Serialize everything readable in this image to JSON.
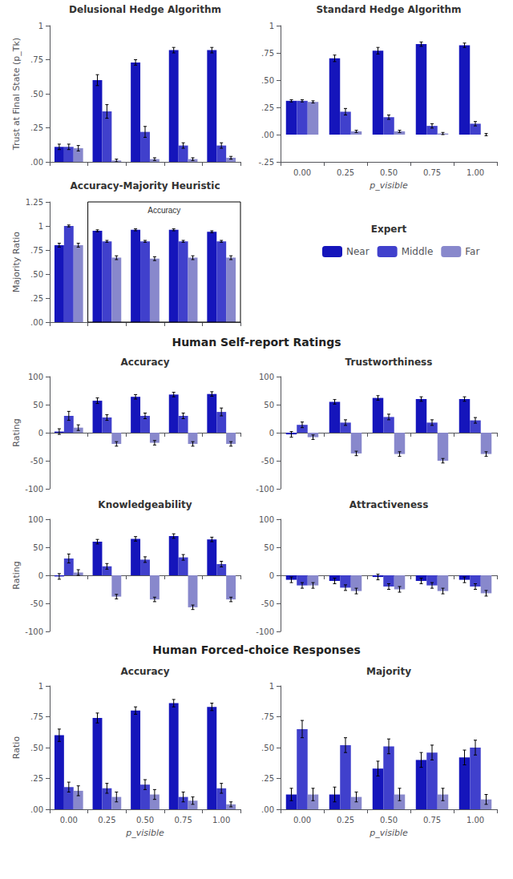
{
  "chart_data": [
    {
      "type": "bar",
      "title": "Delusional Hedge Algorithm",
      "ylabel": "Trust at Final State (p_Tk)",
      "categories": [
        "0.00",
        "0.25",
        "0.50",
        "0.75",
        "1.00"
      ],
      "series": [
        {
          "name": "Near",
          "color": "#1515bb",
          "values": [
            0.11,
            0.6,
            0.73,
            0.82,
            0.82
          ],
          "errors": [
            0.02,
            0.04,
            0.02,
            0.02,
            0.02
          ]
        },
        {
          "name": "Middle",
          "color": "#4040cc",
          "values": [
            0.11,
            0.37,
            0.22,
            0.12,
            0.12
          ],
          "errors": [
            0.02,
            0.05,
            0.04,
            0.02,
            0.02
          ]
        },
        {
          "name": "Far",
          "color": "#8888cc",
          "values": [
            0.1,
            0.01,
            0.02,
            0.02,
            0.03
          ],
          "errors": [
            0.02,
            0.01,
            0.01,
            0.01,
            0.01
          ]
        }
      ],
      "ylim": [
        0,
        1.0
      ],
      "yticks": [
        {
          "value": 0.0,
          "label": ".00"
        },
        {
          "value": 0.25,
          "label": ".25"
        },
        {
          "value": 0.5,
          "label": ".50"
        },
        {
          "value": 0.75,
          "label": ".75"
        },
        1
      ],
      "grid": false,
      "tick_labels": "y"
    },
    {
      "type": "bar",
      "title": "Standard Hedge Algorithm",
      "xlabel": "p_visible",
      "categories": [
        "0.00",
        "0.25",
        "0.50",
        "0.75",
        "1.00"
      ],
      "series": [
        {
          "name": "Near",
          "color": "#1515bb",
          "values": [
            0.31,
            0.7,
            0.77,
            0.83,
            0.82
          ],
          "errors": [
            0.01,
            0.03,
            0.03,
            0.02,
            0.02
          ]
        },
        {
          "name": "Middle",
          "color": "#4040cc",
          "values": [
            0.31,
            0.21,
            0.16,
            0.08,
            0.1
          ],
          "errors": [
            0.01,
            0.03,
            0.02,
            0.02,
            0.02
          ]
        },
        {
          "name": "Far",
          "color": "#8888cc",
          "values": [
            0.3,
            0.03,
            0.03,
            0.01,
            0.0
          ],
          "errors": [
            0.01,
            0.01,
            0.01,
            0.01,
            0.01
          ]
        }
      ],
      "ylim": [
        -0.25,
        1.0
      ],
      "yticks": [
        {
          "value": -0.25,
          "label": "-.25"
        },
        {
          "value": 0.0,
          "label": ".00"
        },
        {
          "value": 0.25,
          "label": ".25"
        },
        {
          "value": 0.5,
          "label": ".50"
        },
        {
          "value": 0.75,
          "label": ".75"
        },
        1
      ],
      "grid": false,
      "legend": "bottom",
      "legend_title": "Expert"
    },
    {
      "type": "bar",
      "title": "Accuracy-Majority Heuristic",
      "ylabel": "Majority Ratio",
      "categories": [
        "0.00",
        "0.25",
        "0.50",
        "0.75",
        "1.00"
      ],
      "series": [
        {
          "name": "Near",
          "color": "#1515bb",
          "values": [
            0.8,
            0.95,
            0.96,
            0.96,
            0.94
          ],
          "errors": [
            0.02,
            0.01,
            0.01,
            0.01,
            0.01
          ]
        },
        {
          "name": "Middle",
          "color": "#4040cc",
          "values": [
            1.0,
            0.84,
            0.84,
            0.84,
            0.84
          ],
          "errors": [
            0.01,
            0.01,
            0.01,
            0.01,
            0.01
          ]
        },
        {
          "name": "Far",
          "color": "#8888cc",
          "values": [
            0.8,
            0.67,
            0.66,
            0.67,
            0.67
          ],
          "errors": [
            0.02,
            0.02,
            0.02,
            0.02,
            0.02
          ]
        }
      ],
      "annotations": [
        {
          "text": "Accuracy",
          "x_range": [
            "0.25",
            "1.00"
          ]
        }
      ],
      "ylim": [
        0,
        1.25
      ],
      "yticks": [
        {
          "value": 0.0,
          "label": ".00"
        },
        {
          "value": 0.25,
          "label": ".25"
        },
        {
          "value": 0.5,
          "label": ".50"
        },
        {
          "value": 0.75,
          "label": ".75"
        },
        1,
        1.25
      ],
      "grid": false,
      "tick_labels": "y"
    },
    {
      "type": "bar",
      "section": "Human Self-report Ratings",
      "title": "Accuracy",
      "ylabel": "Rating",
      "categories": [
        "0.00",
        "0.25",
        "0.50",
        "0.75",
        "1.00"
      ],
      "series": [
        {
          "name": "Near",
          "color": "#1515bb",
          "values": [
            2,
            57,
            64,
            68,
            69
          ],
          "errors": [
            5,
            5,
            4,
            4,
            4
          ]
        },
        {
          "name": "Middle",
          "color": "#4040cc",
          "values": [
            30,
            27,
            30,
            30,
            37
          ],
          "errors": [
            8,
            5,
            5,
            5,
            7
          ]
        },
        {
          "name": "Far",
          "color": "#8888cc",
          "values": [
            9,
            -20,
            -18,
            -20,
            -20
          ],
          "errors": [
            5,
            4,
            4,
            4,
            4
          ]
        }
      ],
      "ylim": [
        -100,
        100
      ],
      "yticks": [
        -100,
        -50,
        0,
        50,
        100
      ],
      "grid": false,
      "tick_labels": "y"
    },
    {
      "type": "bar",
      "title": "Trustworthiness",
      "categories": [
        "0.00",
        "0.25",
        "0.50",
        "0.75",
        "1.00"
      ],
      "series": [
        {
          "name": "Near",
          "color": "#1515bb",
          "values": [
            -3,
            55,
            62,
            60,
            60
          ],
          "errors": [
            5,
            4,
            4,
            4,
            4
          ]
        },
        {
          "name": "Middle",
          "color": "#4040cc",
          "values": [
            14,
            18,
            28,
            18,
            22
          ],
          "errors": [
            5,
            5,
            5,
            5,
            5
          ]
        },
        {
          "name": "Far",
          "color": "#8888cc",
          "values": [
            -8,
            -37,
            -38,
            -50,
            -38
          ],
          "errors": [
            4,
            4,
            4,
            4,
            4
          ]
        }
      ],
      "ylim": [
        -100,
        100
      ],
      "yticks": [
        -100,
        -50,
        0,
        50,
        100
      ],
      "grid": false,
      "tick_labels": "y"
    },
    {
      "type": "bar",
      "title": "Knowledgeability",
      "ylabel": "Rating",
      "categories": [
        "0.00",
        "0.25",
        "0.50",
        "0.75",
        "1.00"
      ],
      "series": [
        {
          "name": "Near",
          "color": "#1515bb",
          "values": [
            -2,
            60,
            65,
            70,
            64
          ],
          "errors": [
            5,
            4,
            4,
            4,
            4
          ]
        },
        {
          "name": "Middle",
          "color": "#4040cc",
          "values": [
            30,
            16,
            28,
            32,
            20
          ],
          "errors": [
            8,
            5,
            5,
            5,
            5
          ]
        },
        {
          "name": "Far",
          "color": "#8888cc",
          "values": [
            5,
            -38,
            -43,
            -57,
            -43
          ],
          "errors": [
            5,
            4,
            4,
            4,
            4
          ]
        }
      ],
      "ylim": [
        -100,
        100
      ],
      "yticks": [
        -100,
        -50,
        0,
        50,
        100
      ],
      "grid": false,
      "tick_labels": "y"
    },
    {
      "type": "bar",
      "title": "Attractiveness",
      "categories": [
        "0.00",
        "0.25",
        "0.50",
        "0.75",
        "1.00"
      ],
      "series": [
        {
          "name": "Near",
          "color": "#1515bb",
          "values": [
            -8,
            -10,
            -3,
            -10,
            -8
          ],
          "errors": [
            5,
            5,
            5,
            5,
            5
          ]
        },
        {
          "name": "Middle",
          "color": "#4040cc",
          "values": [
            -18,
            -22,
            -20,
            -18,
            -20
          ],
          "errors": [
            5,
            5,
            5,
            5,
            5
          ]
        },
        {
          "name": "Far",
          "color": "#8888cc",
          "values": [
            -18,
            -28,
            -25,
            -28,
            -32
          ],
          "errors": [
            5,
            5,
            5,
            5,
            5
          ]
        }
      ],
      "ylim": [
        -100,
        100
      ],
      "yticks": [
        -100,
        -50,
        0,
        50,
        100
      ],
      "grid": false,
      "tick_labels": "y"
    },
    {
      "type": "bar",
      "section": "Human Forced-choice Responses",
      "title": "Accuracy",
      "ylabel": "Ratio",
      "xlabel": "p_visible",
      "categories": [
        "0.00",
        "0.25",
        "0.50",
        "0.75",
        "1.00"
      ],
      "series": [
        {
          "name": "Near",
          "color": "#1515bb",
          "values": [
            0.6,
            0.74,
            0.8,
            0.86,
            0.83
          ],
          "errors": [
            0.05,
            0.04,
            0.03,
            0.03,
            0.03
          ]
        },
        {
          "name": "Middle",
          "color": "#4040cc",
          "values": [
            0.18,
            0.17,
            0.2,
            0.1,
            0.17
          ],
          "errors": [
            0.04,
            0.04,
            0.04,
            0.04,
            0.04
          ]
        },
        {
          "name": "Far",
          "color": "#8888cc",
          "values": [
            0.15,
            0.1,
            0.12,
            0.07,
            0.04
          ],
          "errors": [
            0.04,
            0.04,
            0.04,
            0.03,
            0.02
          ]
        }
      ],
      "ylim": [
        0,
        1
      ],
      "yticks": [
        {
          "value": 0.0,
          "label": ".00"
        },
        {
          "value": 0.25,
          "label": ".25"
        },
        {
          "value": 0.5,
          "label": ".50"
        },
        {
          "value": 0.75,
          "label": ".75"
        },
        1
      ],
      "grid": false
    },
    {
      "type": "bar",
      "title": "Majority",
      "xlabel": "p_visible",
      "categories": [
        "0.00",
        "0.25",
        "0.50",
        "0.75",
        "1.00"
      ],
      "series": [
        {
          "name": "Near",
          "color": "#1515bb",
          "values": [
            0.12,
            0.12,
            0.33,
            0.4,
            0.42
          ],
          "errors": [
            0.05,
            0.06,
            0.06,
            0.06,
            0.06
          ]
        },
        {
          "name": "Middle",
          "color": "#4040cc",
          "values": [
            0.65,
            0.52,
            0.51,
            0.46,
            0.5
          ],
          "errors": [
            0.07,
            0.06,
            0.06,
            0.06,
            0.06
          ]
        },
        {
          "name": "Far",
          "color": "#8888cc",
          "values": [
            0.12,
            0.1,
            0.12,
            0.12,
            0.08
          ],
          "errors": [
            0.05,
            0.04,
            0.05,
            0.05,
            0.04
          ]
        }
      ],
      "ylim": [
        0,
        1
      ],
      "yticks": [
        {
          "value": 0.0,
          "label": ".00"
        },
        {
          "value": 0.25,
          "label": ".25"
        },
        {
          "value": 0.5,
          "label": ".50"
        },
        {
          "value": 0.75,
          "label": ".75"
        },
        1
      ],
      "grid": false
    }
  ]
}
